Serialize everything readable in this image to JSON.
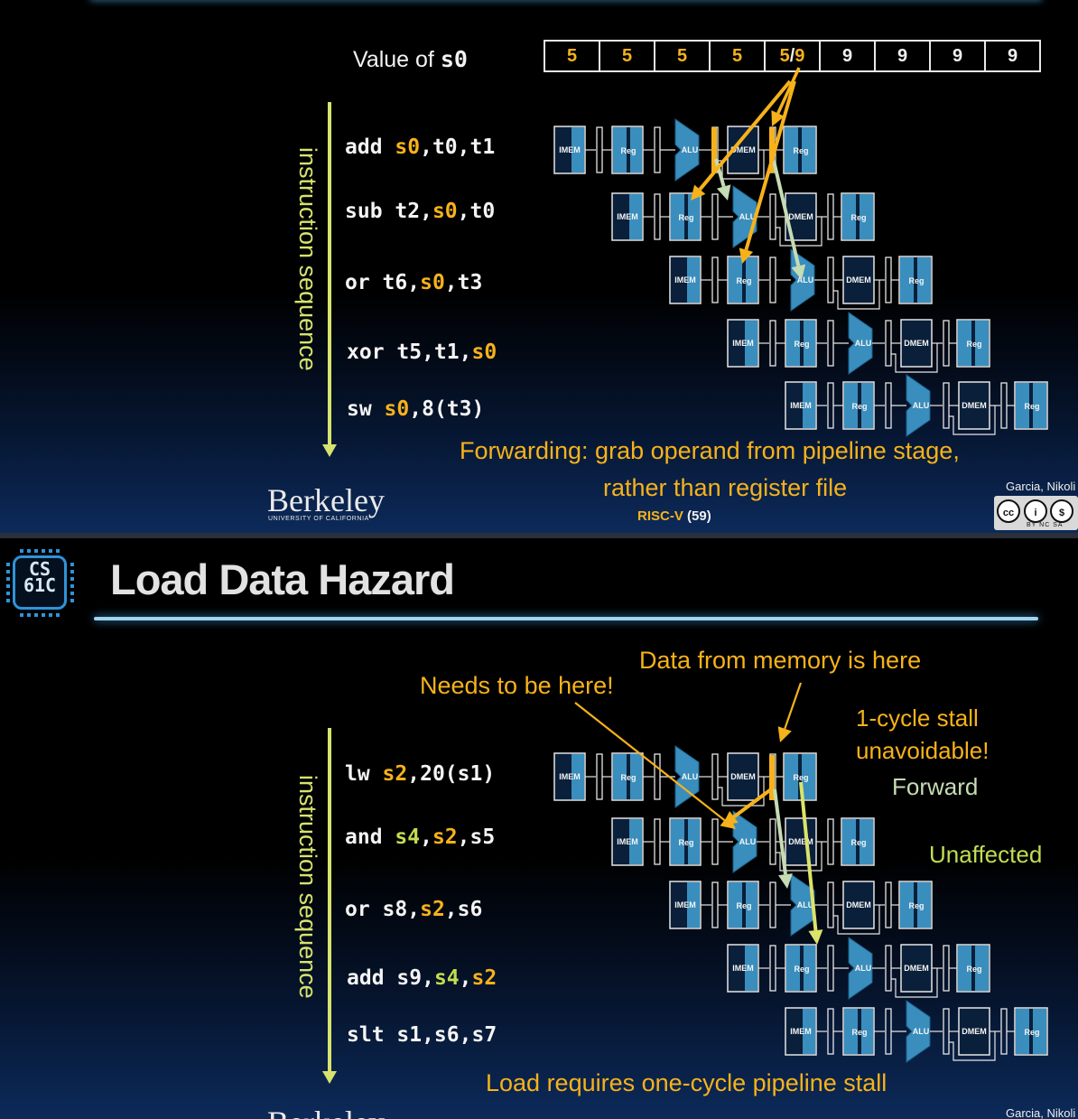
{
  "slide1": {
    "value_label": "Value of ",
    "value_reg": "s0",
    "values": [
      "5",
      "5",
      "5",
      "5",
      "5/9",
      "9",
      "9",
      "9",
      "9"
    ],
    "vertical_label": "instruction sequence",
    "instructions": [
      {
        "op": "add ",
        "args": [
          {
            "t": "s0",
            "c": "o"
          },
          {
            "t": ",t0,t1",
            "c": ""
          }
        ]
      },
      {
        "op": "sub ",
        "args": [
          {
            "t": "t2,",
            "c": ""
          },
          {
            "t": "s0",
            "c": "o"
          },
          {
            "t": ",t0",
            "c": ""
          }
        ]
      },
      {
        "op": "or ",
        "args": [
          {
            "t": "t6,",
            "c": ""
          },
          {
            "t": "s0",
            "c": "o"
          },
          {
            "t": ",t3",
            "c": ""
          }
        ]
      },
      {
        "op": "xor ",
        "args": [
          {
            "t": "t5,t1,",
            "c": ""
          },
          {
            "t": "s0",
            "c": "o"
          }
        ]
      },
      {
        "op": "sw ",
        "args": [
          {
            "t": "s0",
            "c": "o"
          },
          {
            "t": ",8(t3)",
            "c": ""
          }
        ]
      }
    ],
    "caption_line1": "Forwarding: grab operand from pipeline stage,",
    "caption_line2": "rather than register file",
    "author": "Garcia, Nikoli",
    "footer_left": "RISC-V",
    "footer_page": "(59)",
    "berkeley": "Berkeley",
    "berkeley_sub": "UNIVERSITY OF CALIFORNIA",
    "cc_labels": "BY  NC  SA"
  },
  "slide2": {
    "logo_line1": "CS",
    "logo_line2": "61C",
    "title": "Load Data Hazard",
    "vertical_label": "instruction sequence",
    "instructions": [
      {
        "op": "lw ",
        "args": [
          {
            "t": "s2",
            "c": "o"
          },
          {
            "t": ",20(s1)",
            "c": ""
          }
        ]
      },
      {
        "op": "and ",
        "args": [
          {
            "t": "s4",
            "c": "g"
          },
          {
            "t": ",",
            "c": ""
          },
          {
            "t": "s2",
            "c": "o"
          },
          {
            "t": ",s5",
            "c": ""
          }
        ]
      },
      {
        "op": "or ",
        "args": [
          {
            "t": "s8,",
            "c": ""
          },
          {
            "t": "s2",
            "c": "o"
          },
          {
            "t": ",s6",
            "c": ""
          }
        ]
      },
      {
        "op": "add ",
        "args": [
          {
            "t": "s9,",
            "c": ""
          },
          {
            "t": "s4",
            "c": "g"
          },
          {
            "t": ",",
            "c": ""
          },
          {
            "t": "s2",
            "c": "o"
          }
        ]
      },
      {
        "op": "slt ",
        "args": [
          {
            "t": "s1,s6,s7",
            "c": ""
          }
        ]
      }
    ],
    "note_data_here": "Data from memory is here",
    "note_needs_here": "Needs to be here!",
    "note_stall_1": "1-cycle stall",
    "note_stall_2": "unavoidable!",
    "note_forward": "Forward",
    "note_unaffected": "Unaffected",
    "caption": "Load requires one-cycle pipeline stall",
    "author": "Garcia, Nikoli",
    "berkeley": "Berkeley"
  },
  "pipeline": {
    "stage_labels": [
      "IMEM",
      "Reg",
      "ALU",
      "DMEM",
      "Reg"
    ],
    "colors": {
      "box": "#3a8ebd",
      "border": "#e6e6e6",
      "forward": "#f7b21b",
      "green": "#c5dcb4",
      "yellow": "#dce36a"
    }
  }
}
